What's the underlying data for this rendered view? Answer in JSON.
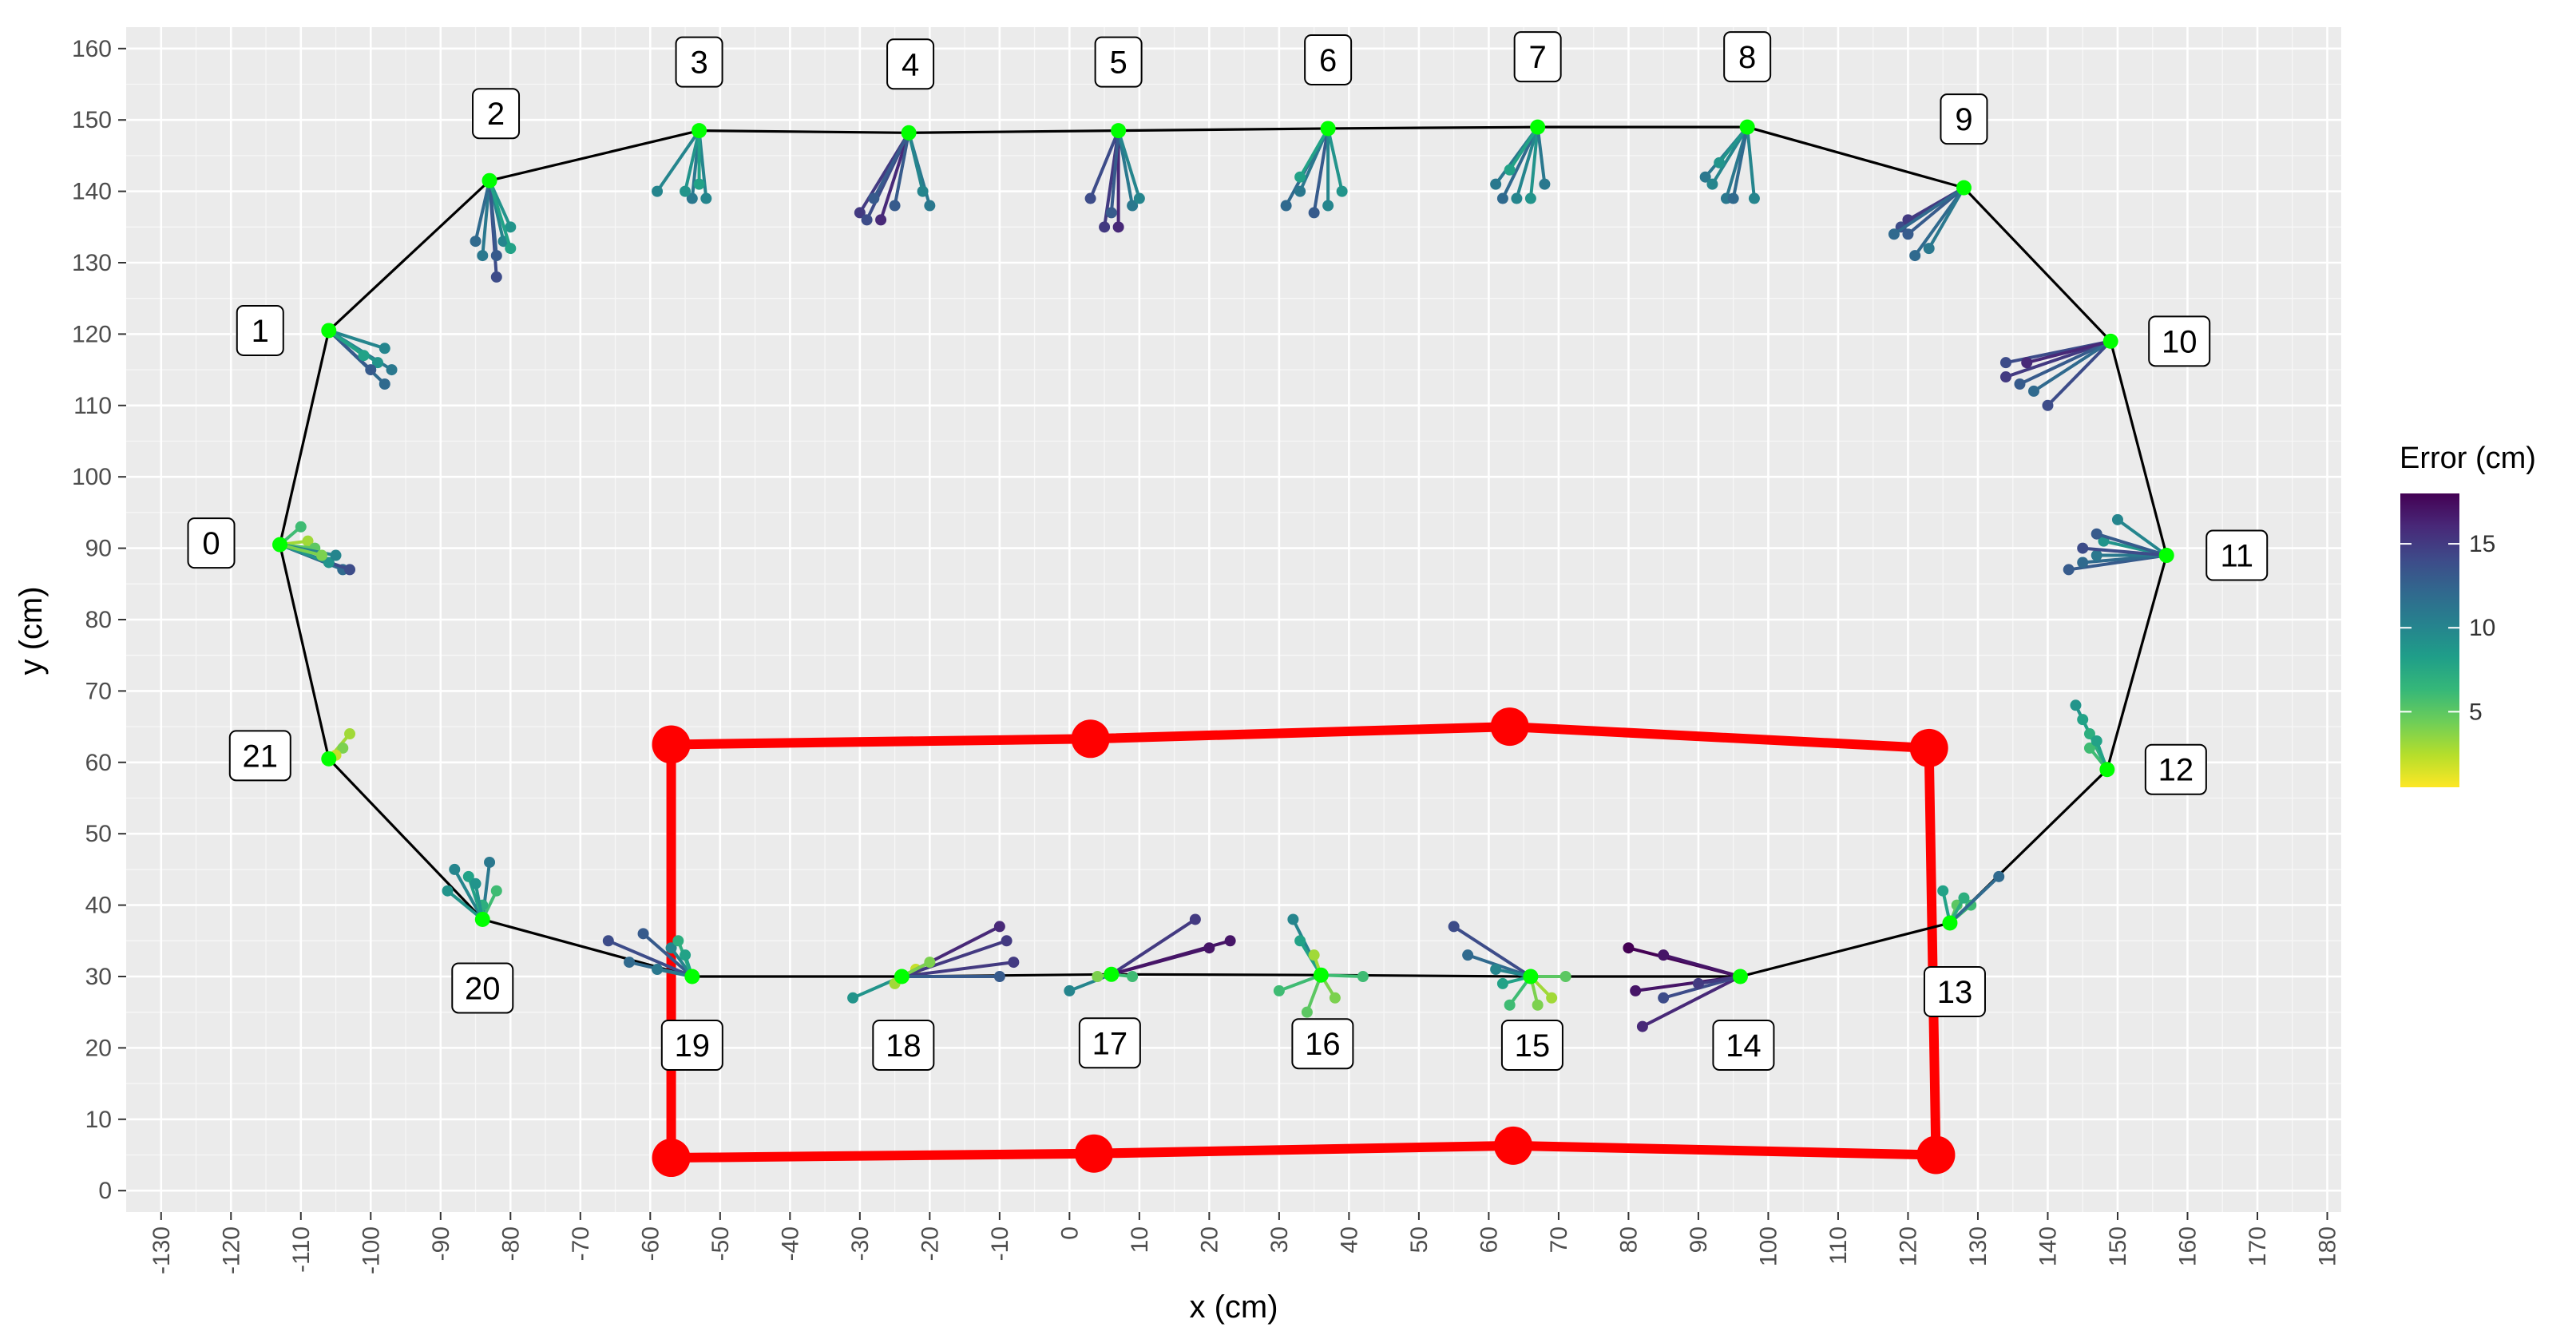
{
  "chart_data": {
    "type": "scatter",
    "xlabel": "x (cm)",
    "ylabel": "y (cm)",
    "xlim": [
      -135,
      182
    ],
    "ylim": [
      -3,
      163
    ],
    "x_ticks": [
      -130,
      -120,
      -110,
      -100,
      -90,
      -80,
      -70,
      -60,
      -50,
      -40,
      -30,
      -20,
      -10,
      0,
      10,
      20,
      30,
      40,
      50,
      60,
      70,
      80,
      90,
      100,
      110,
      120,
      130,
      140,
      150,
      160,
      170,
      180
    ],
    "y_ticks": [
      0,
      10,
      20,
      30,
      40,
      50,
      60,
      70,
      80,
      90,
      100,
      110,
      120,
      130,
      140,
      150,
      160
    ],
    "grid": true,
    "legend": {
      "title": "Error (cm)",
      "position": "right",
      "min": 0.5,
      "max": 18,
      "ticks": [
        5,
        10,
        15
      ],
      "colors": [
        "#FDE725",
        "#B5DE2B",
        "#6ECE58",
        "#35B779",
        "#1F9E89",
        "#26828E",
        "#31688E",
        "#3E4A89",
        "#482878",
        "#440154"
      ]
    },
    "path_color": "#000000",
    "target_color": "#00FF00",
    "waypoints": [
      {
        "label": "0",
        "x": -113,
        "y": 90.5
      },
      {
        "label": "1",
        "x": -106,
        "y": 120.5
      },
      {
        "label": "2",
        "x": -83,
        "y": 141.5
      },
      {
        "label": "3",
        "x": -53,
        "y": 148.5
      },
      {
        "label": "4",
        "x": -23,
        "y": 148.2
      },
      {
        "label": "5",
        "x": 7,
        "y": 148.5
      },
      {
        "label": "6",
        "x": 37,
        "y": 148.8
      },
      {
        "label": "7",
        "x": 67,
        "y": 149
      },
      {
        "label": "8",
        "x": 97,
        "y": 149
      },
      {
        "label": "9",
        "x": 128,
        "y": 140.5
      },
      {
        "label": "10",
        "x": 149,
        "y": 119
      },
      {
        "label": "11",
        "x": 157,
        "y": 89
      },
      {
        "label": "12",
        "x": 148.5,
        "y": 59
      },
      {
        "label": "13",
        "x": 126,
        "y": 37.5
      },
      {
        "label": "14",
        "x": 96,
        "y": 30
      },
      {
        "label": "15",
        "x": 66,
        "y": 30
      },
      {
        "label": "16",
        "x": 36,
        "y": 30.2
      },
      {
        "label": "17",
        "x": 6,
        "y": 30.3
      },
      {
        "label": "18",
        "x": -24,
        "y": 30
      },
      {
        "label": "19",
        "x": -54,
        "y": 30
      }
    ],
    "waypoints_extra": [
      {
        "label": "20",
        "x": -84,
        "y": 38
      },
      {
        "label": "21",
        "x": -106,
        "y": 60.5
      }
    ],
    "label_positions": "offset around each waypoint",
    "measurements": [
      {
        "wp": 0,
        "pts": [
          [
            -104,
            87,
            12
          ],
          [
            -103,
            87,
            14
          ],
          [
            -106,
            88,
            9
          ],
          [
            -109,
            91,
            3
          ],
          [
            -110,
            93,
            6
          ],
          [
            -108,
            90,
            5
          ],
          [
            -105,
            89,
            10
          ],
          [
            -107,
            89,
            4
          ]
        ]
      },
      {
        "wp": 1,
        "pts": [
          [
            -98,
            113,
            12
          ],
          [
            -97,
            115,
            11
          ],
          [
            -99,
            116,
            9
          ],
          [
            -98,
            118,
            10
          ],
          [
            -100,
            115,
            13
          ],
          [
            -101,
            117,
            8
          ]
        ]
      },
      {
        "wp": 2,
        "pts": [
          [
            -82,
            128,
            14
          ],
          [
            -84,
            131,
            11
          ],
          [
            -81,
            133,
            10
          ],
          [
            -80,
            135,
            9
          ],
          [
            -85,
            133,
            12
          ],
          [
            -82,
            131,
            13
          ],
          [
            -80,
            132,
            8
          ]
        ]
      },
      {
        "wp": 3,
        "pts": [
          [
            -59,
            140,
            10
          ],
          [
            -54,
            139,
            11
          ],
          [
            -52,
            139,
            10
          ],
          [
            -55,
            140,
            9
          ],
          [
            -53,
            141,
            8
          ]
        ]
      },
      {
        "wp": 4,
        "pts": [
          [
            -30,
            137,
            15
          ],
          [
            -29,
            136,
            14
          ],
          [
            -27,
            136,
            16
          ],
          [
            -25,
            138,
            13
          ],
          [
            -20,
            138,
            11
          ],
          [
            -21,
            140,
            10
          ],
          [
            -28,
            139,
            13
          ]
        ]
      },
      {
        "wp": 5,
        "pts": [
          [
            3,
            139,
            14
          ],
          [
            5,
            135,
            15
          ],
          [
            7,
            135,
            16
          ],
          [
            9,
            138,
            11
          ],
          [
            10,
            139,
            10
          ],
          [
            6,
            137,
            13
          ]
        ]
      },
      {
        "wp": 6,
        "pts": [
          [
            31,
            138,
            12
          ],
          [
            33,
            140,
            11
          ],
          [
            35,
            137,
            13
          ],
          [
            37,
            138,
            10
          ],
          [
            39,
            140,
            9
          ],
          [
            33,
            142,
            8
          ]
        ]
      },
      {
        "wp": 7,
        "pts": [
          [
            61,
            141,
            11
          ],
          [
            62,
            139,
            12
          ],
          [
            64,
            139,
            10
          ],
          [
            66,
            139,
            9
          ],
          [
            68,
            141,
            11
          ],
          [
            63,
            143,
            8
          ]
        ]
      },
      {
        "wp": 8,
        "pts": [
          [
            91,
            142,
            11
          ],
          [
            92,
            141,
            10
          ],
          [
            94,
            139,
            11
          ],
          [
            95,
            139,
            12
          ],
          [
            98,
            139,
            10
          ],
          [
            93,
            144,
            9
          ]
        ]
      },
      {
        "wp": 9,
        "pts": [
          [
            119,
            135,
            14
          ],
          [
            120,
            134,
            13
          ],
          [
            121,
            131,
            12
          ],
          [
            123,
            132,
            11
          ],
          [
            120,
            136,
            15
          ],
          [
            118,
            134,
            12
          ]
        ]
      },
      {
        "wp": 10,
        "pts": [
          [
            134,
            116,
            14
          ],
          [
            134,
            114,
            15
          ],
          [
            136,
            113,
            13
          ],
          [
            138,
            112,
            12
          ],
          [
            140,
            110,
            14
          ],
          [
            137,
            116,
            16
          ]
        ]
      },
      {
        "wp": 11,
        "pts": [
          [
            143,
            87,
            13
          ],
          [
            145,
            88,
            12
          ],
          [
            147,
            89,
            11
          ],
          [
            148,
            91,
            9
          ],
          [
            150,
            94,
            10
          ],
          [
            147,
            92,
            13
          ],
          [
            145,
            90,
            14
          ]
        ]
      },
      {
        "wp": 12,
        "pts": [
          [
            144,
            68,
            9
          ],
          [
            145,
            66,
            8
          ],
          [
            146,
            64,
            7
          ],
          [
            146,
            62,
            6
          ],
          [
            147,
            63,
            8
          ]
        ]
      },
      {
        "wp": 13,
        "pts": [
          [
            125,
            42,
            8
          ],
          [
            127,
            40,
            5
          ],
          [
            129,
            40,
            6
          ],
          [
            133,
            44,
            12
          ],
          [
            128,
            41,
            7
          ]
        ]
      },
      {
        "wp": 14,
        "pts": [
          [
            80,
            34,
            18
          ],
          [
            85,
            33,
            17
          ],
          [
            82,
            23,
            16
          ],
          [
            85,
            27,
            14
          ],
          [
            81,
            28,
            17
          ],
          [
            90,
            29,
            15
          ]
        ]
      },
      {
        "wp": 15,
        "pts": [
          [
            55,
            37,
            14
          ],
          [
            57,
            33,
            12
          ],
          [
            61,
            31,
            10
          ],
          [
            62,
            29,
            8
          ],
          [
            63,
            26,
            6
          ],
          [
            67,
            26,
            4
          ],
          [
            69,
            27,
            3
          ],
          [
            71,
            30,
            5
          ]
        ]
      },
      {
        "wp": 16,
        "pts": [
          [
            32,
            38,
            10
          ],
          [
            33,
            35,
            8
          ],
          [
            30,
            28,
            6
          ],
          [
            34,
            25,
            5
          ],
          [
            38,
            27,
            4
          ],
          [
            42,
            30,
            6
          ],
          [
            35,
            33,
            3
          ]
        ]
      },
      {
        "wp": 17,
        "pts": [
          [
            0,
            28,
            10
          ],
          [
            18,
            38,
            15
          ],
          [
            20,
            34,
            17
          ],
          [
            23,
            35,
            17
          ],
          [
            9,
            30,
            6
          ],
          [
            4,
            30,
            4
          ]
        ]
      },
      {
        "wp": 18,
        "pts": [
          [
            -31,
            27,
            9
          ],
          [
            -25,
            29,
            3
          ],
          [
            -22,
            31,
            2
          ],
          [
            -10,
            37,
            16
          ],
          [
            -9,
            35,
            15
          ],
          [
            -8,
            32,
            15
          ],
          [
            -10,
            30,
            13
          ],
          [
            -20,
            32,
            4
          ]
        ]
      },
      {
        "wp": 19,
        "pts": [
          [
            -66,
            35,
            14
          ],
          [
            -63,
            32,
            12
          ],
          [
            -61,
            36,
            13
          ],
          [
            -59,
            31,
            11
          ],
          [
            -57,
            34,
            10
          ],
          [
            -56,
            35,
            7
          ],
          [
            -55,
            33,
            8
          ]
        ]
      },
      {
        "wp": 20,
        "pts": [
          [
            -89,
            42,
            9
          ],
          [
            -88,
            45,
            10
          ],
          [
            -86,
            44,
            8
          ],
          [
            -83,
            46,
            11
          ],
          [
            -82,
            42,
            6
          ],
          [
            -84,
            40,
            7
          ],
          [
            -85,
            43,
            9
          ]
        ]
      },
      {
        "wp": 21,
        "pts": [
          [
            -103,
            64,
            3
          ],
          [
            -104,
            62,
            4
          ],
          [
            -105,
            61,
            2
          ]
        ]
      }
    ],
    "red_polygon": {
      "color": "#FF0000",
      "points": [
        {
          "x": -57,
          "y": 62.5
        },
        {
          "x": 3,
          "y": 63.3
        },
        {
          "x": 63,
          "y": 65
        },
        {
          "x": 123,
          "y": 62
        },
        {
          "x": 124,
          "y": 5
        },
        {
          "x": 63.5,
          "y": 6.3
        },
        {
          "x": 3.5,
          "y": 5.2
        },
        {
          "x": -57,
          "y": 4.6
        }
      ]
    }
  }
}
